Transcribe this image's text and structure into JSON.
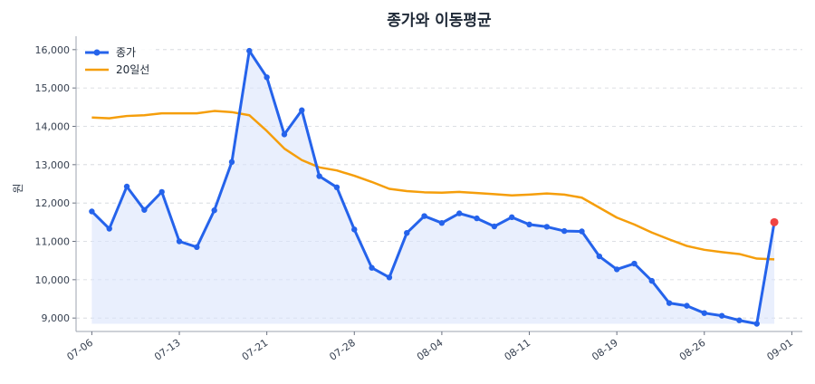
{
  "chart_data": {
    "type": "line",
    "title": "종가와 이동평균",
    "xlabel": "",
    "ylabel": "원",
    "ylim": [
      8650,
      16350
    ],
    "yticks": [
      9000,
      10000,
      11000,
      12000,
      13000,
      14000,
      15000,
      16000
    ],
    "ytick_labels": [
      "9,000",
      "10,000",
      "11,000",
      "12,000",
      "13,000",
      "14,000",
      "15,000",
      "16,000"
    ],
    "xlim": [
      -0.9,
      40.6
    ],
    "xtick_positions": [
      0,
      5,
      10,
      15,
      20,
      25,
      30,
      35,
      40
    ],
    "xtick_labels": [
      "07-06",
      "07-13",
      "07-21",
      "07-28",
      "08-04",
      "08-11",
      "08-19",
      "08-26",
      "09-01"
    ],
    "fill_baseline": 8850,
    "grid": "y-dashed",
    "legend_position": "top-left",
    "colors": {
      "close": "#2563eb",
      "ma20": "#f59e0b",
      "fill": "#dbe5fb",
      "last_marker": "#ef4444"
    },
    "series": [
      {
        "name": "종가",
        "style": "line-marker",
        "values": [
          11780,
          11330,
          12430,
          11820,
          12290,
          11000,
          10850,
          11810,
          13070,
          15970,
          15280,
          13790,
          14420,
          12700,
          12410,
          11310,
          10310,
          10060,
          11220,
          11660,
          11480,
          11730,
          11600,
          11390,
          11630,
          11440,
          11380,
          11270,
          11260,
          10610,
          10270,
          10420,
          9970,
          9390,
          9320,
          9130,
          9060,
          8940,
          8850,
          11500
        ]
      },
      {
        "name": "20일선",
        "style": "line",
        "values": [
          14230,
          14210,
          14270,
          14290,
          14340,
          14340,
          14340,
          14400,
          14370,
          14290,
          13880,
          13420,
          13120,
          12930,
          12850,
          12710,
          12550,
          12370,
          12310,
          12280,
          12270,
          12290,
          12260,
          12230,
          12200,
          12220,
          12250,
          12220,
          12140,
          11880,
          11620,
          11440,
          11230,
          11050,
          10880,
          10780,
          10720,
          10670,
          10550,
          10530
        ]
      }
    ]
  }
}
